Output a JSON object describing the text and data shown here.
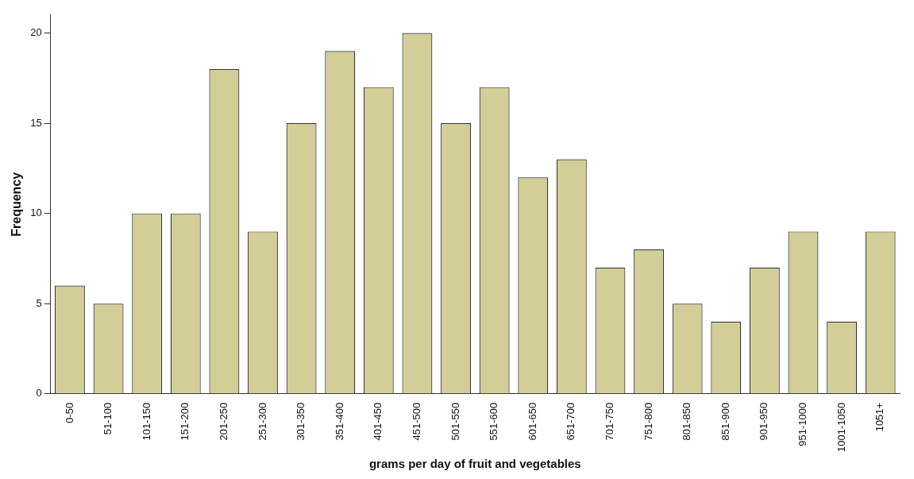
{
  "chart_data": {
    "type": "bar",
    "xlabel": "grams per day of fruit and vegetables",
    "ylabel": "Frequency",
    "categories": [
      "0-50",
      "51-100",
      "101-150",
      "151-200",
      "201-250",
      "251-300",
      "301-350",
      "351-400",
      "401-450",
      "451-500",
      "501-550",
      "551-600",
      "601-650",
      "651-700",
      "701-750",
      "751-800",
      "801-850",
      "851-900",
      "901-950",
      "951-1000",
      "1001-1050",
      "1051+"
    ],
    "values": [
      6,
      5,
      10,
      10,
      18,
      9,
      15,
      19,
      17,
      20,
      15,
      17,
      12,
      13,
      7,
      8,
      5,
      4,
      7,
      9,
      4,
      9
    ],
    "color": "#d3ce98",
    "ylim": [
      0,
      21
    ],
    "yticks": [
      0,
      5,
      10,
      15,
      20
    ],
    "grid": false,
    "legend": false
  }
}
